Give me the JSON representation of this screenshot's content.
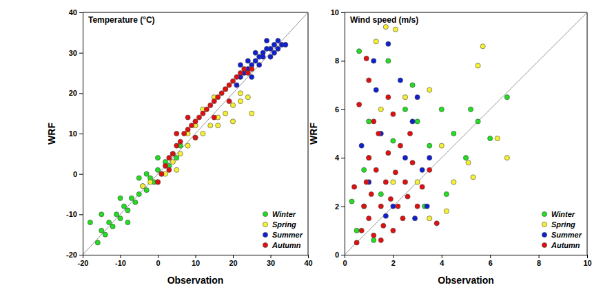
{
  "chart_data": [
    {
      "type": "scatter",
      "title": "Temperature (°C)",
      "x_label": "Observation",
      "y_label": "WRF",
      "xlim": [
        -20,
        40
      ],
      "ylim": [
        -20,
        40
      ],
      "xticks": [
        -20,
        -10,
        0,
        10,
        20,
        30,
        40
      ],
      "yticks": [
        -20,
        -10,
        0,
        10,
        20,
        30,
        40
      ],
      "legend": "lower right",
      "marker": "circle",
      "series": [
        {
          "name": "Winter",
          "color": "#22dd22",
          "x": [
            -16,
            -15,
            -14,
            -13,
            -12,
            -11,
            -10,
            -9,
            -8,
            -7,
            -6,
            -5,
            -4,
            -3,
            -2,
            -1,
            0,
            1,
            2,
            3,
            4,
            5,
            6,
            -18,
            -15,
            -10,
            -5,
            0,
            -3,
            -8
          ],
          "values": [
            -17,
            -14,
            -15,
            -12,
            -13,
            -10,
            -11,
            -8,
            -9,
            -6,
            -7,
            -5,
            -3,
            -4,
            -1,
            -2,
            1,
            0,
            3,
            2,
            5,
            4,
            7,
            -12,
            -10,
            -6,
            -1,
            4,
            0,
            -12
          ]
        },
        {
          "name": "Spring",
          "color": "#f5f032",
          "x": [
            -4,
            -2,
            0,
            2,
            4,
            6,
            8,
            10,
            12,
            14,
            16,
            18,
            20,
            22,
            24,
            25,
            15,
            12,
            18,
            20,
            8,
            5,
            10,
            16,
            22
          ],
          "values": [
            -3,
            -2,
            -2,
            0,
            3,
            5,
            7,
            9,
            10,
            12,
            14,
            15,
            17,
            18,
            19,
            15,
            19,
            16,
            21,
            13,
            10,
            1,
            12,
            12,
            20
          ]
        },
        {
          "name": "Summer",
          "color": "#1020d0",
          "x": [
            21,
            22,
            23,
            24,
            25,
            26,
            27,
            28,
            29,
            30,
            31,
            32,
            33,
            34,
            24,
            26,
            28,
            30,
            25,
            27,
            32,
            29,
            22,
            31
          ],
          "values": [
            22,
            24,
            25,
            26,
            27,
            28,
            29,
            30,
            31,
            31,
            32,
            33,
            32,
            32,
            28,
            30,
            29,
            29,
            24,
            27,
            31,
            33,
            27,
            30
          ]
        },
        {
          "name": "Autumn",
          "color": "#e01010",
          "x": [
            0,
            1,
            2,
            3,
            4,
            5,
            6,
            7,
            8,
            9,
            10,
            11,
            12,
            13,
            14,
            15,
            16,
            17,
            18,
            19,
            20,
            21,
            22,
            23,
            24,
            25,
            5,
            10,
            15,
            8,
            19,
            3
          ],
          "values": [
            -2,
            0,
            2,
            4,
            5,
            7,
            8,
            10,
            11,
            12,
            13,
            14,
            15,
            16,
            17,
            18,
            19,
            20,
            21,
            22,
            23,
            24,
            25,
            26,
            25,
            26,
            10,
            9,
            14,
            14,
            18,
            1
          ]
        }
      ]
    },
    {
      "type": "scatter",
      "title": "Wind speed (m/s)",
      "x_label": "Observation",
      "y_label": "WRF",
      "xlim": [
        0,
        10
      ],
      "ylim": [
        0,
        10
      ],
      "xticks": [
        0,
        2,
        4,
        6,
        8,
        10
      ],
      "yticks": [
        0,
        2,
        4,
        6,
        8,
        10
      ],
      "legend": "lower right",
      "marker": "circle",
      "series": [
        {
          "name": "Winter",
          "color": "#22dd22",
          "x": [
            0.5,
            0.8,
            0.6,
            1,
            1.5,
            2,
            2.5,
            3,
            3.5,
            4,
            4.5,
            5,
            5.5,
            6,
            6.7,
            0.3,
            1.2,
            3.3,
            4.2,
            2.8,
            1.8,
            5.2
          ],
          "values": [
            1,
            3.5,
            8.4,
            5.5,
            2.5,
            4.7,
            6,
            5.5,
            4.5,
            6,
            5,
            4,
            5.5,
            4.8,
            6.5,
            2.2,
            0.6,
            2,
            2.5,
            7,
            8,
            6
          ]
        },
        {
          "name": "Spring",
          "color": "#f5f032",
          "x": [
            1.7,
            2.1,
            1.3,
            5.7,
            5.5,
            6.7,
            6.3,
            5.1,
            4.5,
            3.5,
            2.5,
            3,
            4,
            2,
            1,
            4.2,
            3.5,
            5.3,
            1.5,
            0.8
          ],
          "values": [
            9.4,
            9.3,
            8.8,
            8.6,
            7.8,
            4,
            4.8,
            3.8,
            3,
            6.8,
            6.5,
            3,
            4.5,
            3,
            4,
            1.8,
            1.5,
            3.2,
            6,
            2
          ]
        },
        {
          "name": "Summer",
          "color": "#1020d0",
          "x": [
            1.2,
            1.8,
            2.3,
            3,
            2.8,
            2.5,
            3.4,
            1.5,
            1,
            2,
            3.2,
            1.7,
            0.7,
            2.9,
            1.3,
            3.5
          ],
          "values": [
            8,
            8.7,
            7.2,
            6.5,
            5.5,
            4,
            2,
            5,
            3,
            2,
            3.5,
            1.6,
            4.5,
            1.5,
            6.8,
            4
          ]
        },
        {
          "name": "Autumn",
          "color": "#e01010",
          "x": [
            0.5,
            0.7,
            0.8,
            0.9,
            1,
            1,
            1.1,
            1.2,
            1.3,
            1.4,
            1.5,
            1.6,
            1.7,
            1.8,
            1.9,
            2,
            2,
            2.1,
            2.2,
            2.3,
            2.4,
            2.5,
            2.6,
            2.8,
            3,
            3.2,
            3.5,
            0.6,
            1,
            0.4,
            1.5,
            1.2,
            3.8,
            2.7,
            0.9,
            1.8
          ],
          "values": [
            0.5,
            1,
            2,
            3,
            4,
            1.5,
            2.5,
            0.8,
            3.5,
            5,
            2,
            1.2,
            3,
            4.2,
            2.3,
            1,
            5.8,
            3.4,
            2,
            4.5,
            1.5,
            3,
            2.4,
            3.8,
            2,
            2.8,
            3.5,
            6.2,
            7.2,
            2.8,
            0.6,
            5.5,
            1.3,
            5,
            8.1,
            6.5
          ]
        }
      ]
    }
  ]
}
